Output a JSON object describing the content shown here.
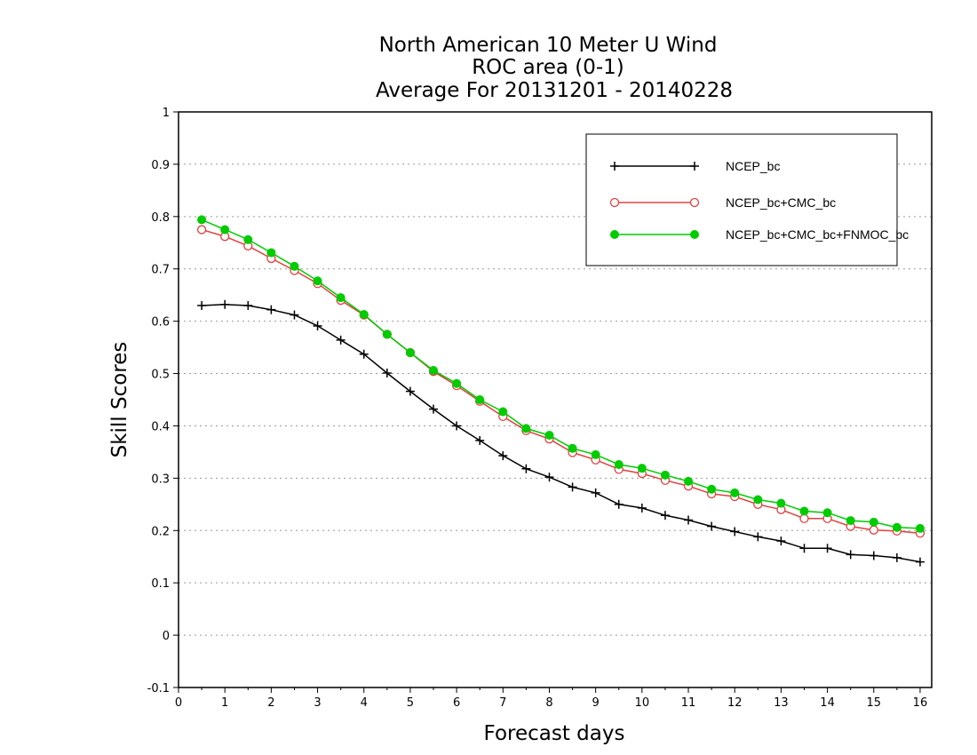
{
  "chart_data": {
    "type": "line",
    "title": [
      "North American 10 Meter U Wind",
      "ROC area (0-1)",
      "Average For 20131201 - 20140228"
    ],
    "xlabel": "Forecast days",
    "ylabel": "Skill Scores",
    "xlim": [
      0,
      16.25
    ],
    "ylim": [
      -0.1,
      1
    ],
    "xticks": [
      "0",
      "1",
      "2",
      "3",
      "4",
      "5",
      "6",
      "7",
      "8",
      "9",
      "10",
      "11",
      "12",
      "13",
      "14",
      "15",
      "16"
    ],
    "yticks": [
      "-0.1",
      "0",
      "0.1",
      "0.2",
      "0.3",
      "0.4",
      "0.5",
      "0.6",
      "0.7",
      "0.8",
      "0.9",
      "1"
    ],
    "grid": true,
    "legend_position": "top-right",
    "x": [
      0.5,
      1,
      1.5,
      2,
      2.5,
      3,
      3.5,
      4,
      4.5,
      5,
      5.5,
      6,
      6.5,
      7,
      7.5,
      8,
      8.5,
      9,
      9.5,
      10,
      10.5,
      11,
      11.5,
      12,
      12.5,
      13,
      13.5,
      14,
      14.5,
      15,
      15.5,
      16
    ],
    "series": [
      {
        "name": "NCEP_bc",
        "color": "#000000",
        "marker": "plus",
        "values": [
          0.63,
          0.632,
          0.63,
          0.622,
          0.612,
          0.591,
          0.564,
          0.537,
          0.501,
          0.466,
          0.432,
          0.4,
          0.372,
          0.343,
          0.318,
          0.302,
          0.283,
          0.272,
          0.25,
          0.243,
          0.229,
          0.22,
          0.208,
          0.198,
          0.188,
          0.18,
          0.166,
          0.166,
          0.154,
          0.152,
          0.148,
          0.14
        ]
      },
      {
        "name": "NCEP_bc+CMC_bc",
        "color": "#e04040",
        "marker": "open-circle",
        "values": [
          0.775,
          0.762,
          0.744,
          0.72,
          0.697,
          0.672,
          0.64,
          0.612,
          0.575,
          0.54,
          0.504,
          0.477,
          0.447,
          0.418,
          0.391,
          0.375,
          0.349,
          0.335,
          0.317,
          0.309,
          0.296,
          0.285,
          0.27,
          0.265,
          0.25,
          0.24,
          0.223,
          0.223,
          0.208,
          0.201,
          0.199,
          0.195
        ]
      },
      {
        "name": "NCEP_bc+CMC_bc+FNMOC_bc",
        "color": "#00cc00",
        "marker": "filled-circle",
        "values": [
          0.794,
          0.775,
          0.756,
          0.731,
          0.705,
          0.677,
          0.645,
          0.613,
          0.575,
          0.54,
          0.506,
          0.481,
          0.45,
          0.427,
          0.395,
          0.382,
          0.357,
          0.345,
          0.326,
          0.319,
          0.306,
          0.294,
          0.279,
          0.272,
          0.259,
          0.252,
          0.237,
          0.234,
          0.219,
          0.216,
          0.206,
          0.204
        ]
      }
    ]
  }
}
